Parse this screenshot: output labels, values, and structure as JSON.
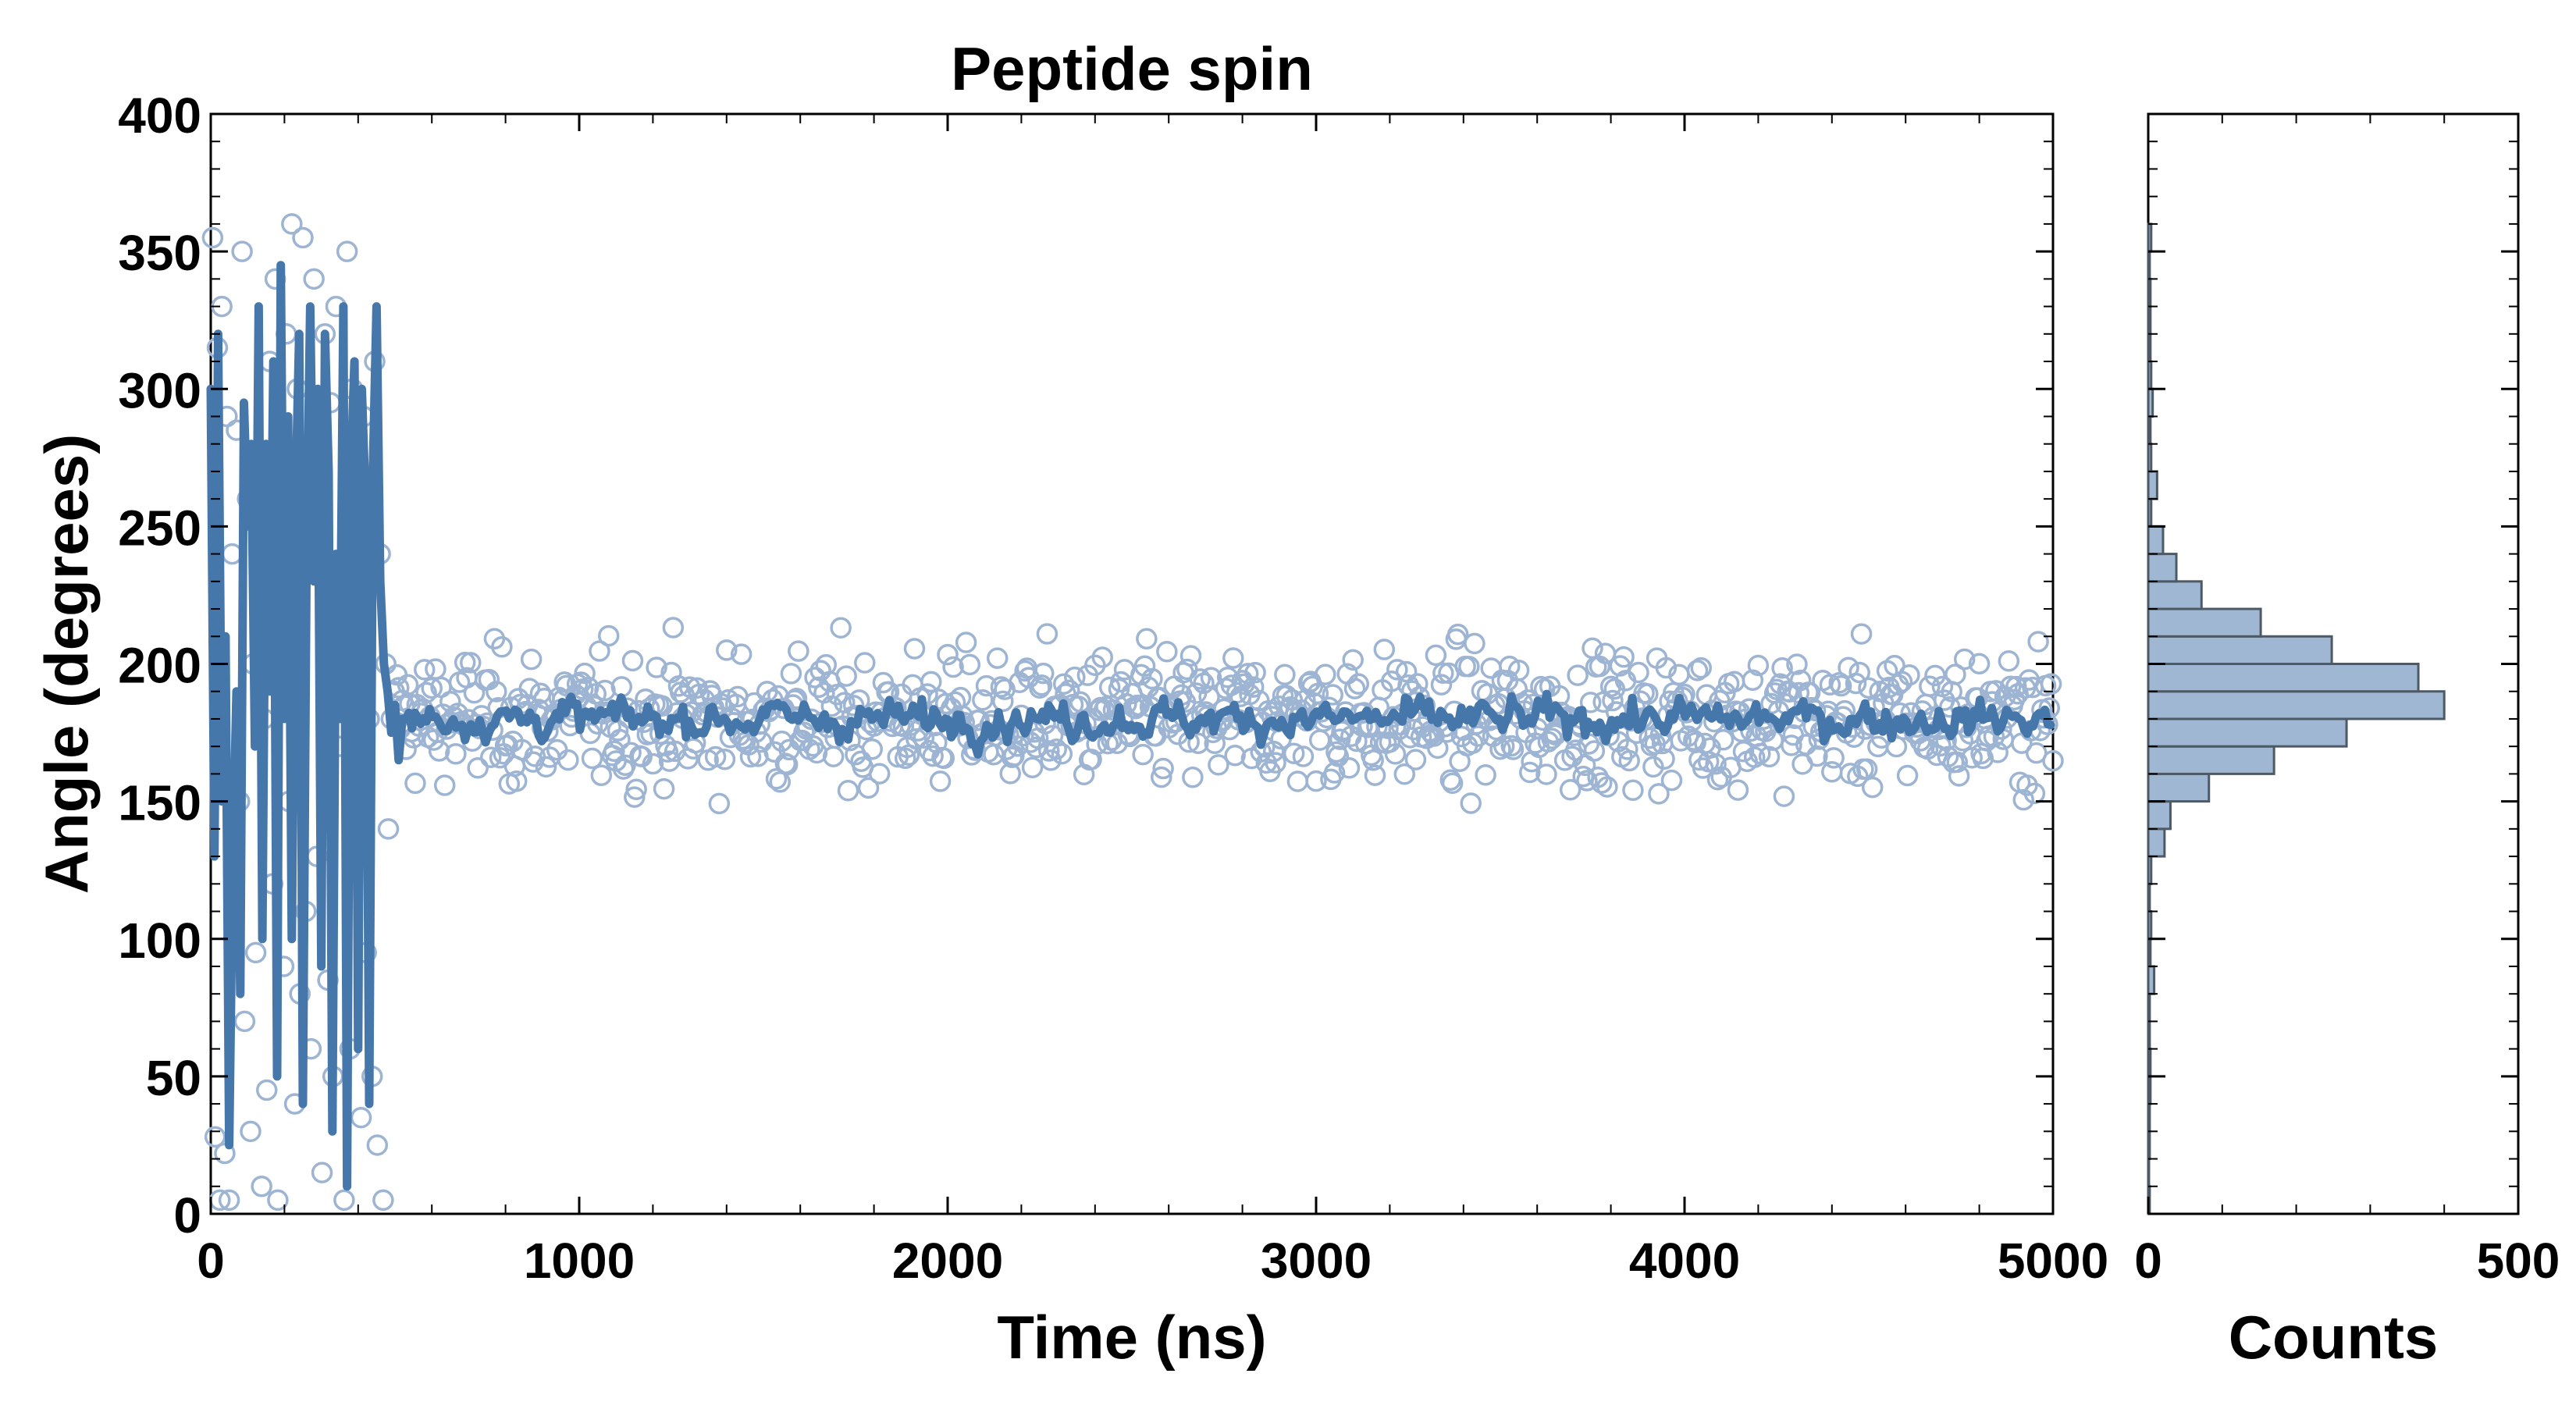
{
  "chart_data": [
    {
      "type": "scatter",
      "title": "Peptide spin",
      "xlabel": "Time (ns)",
      "ylabel": "Angle (degrees)",
      "xlim": [
        0,
        5000
      ],
      "ylim": [
        0,
        400
      ],
      "x_ticks": [
        "0",
        "1000",
        "2000",
        "3000",
        "4000",
        "5000"
      ],
      "y_ticks": [
        "0",
        "50",
        "100",
        "150",
        "200",
        "250",
        "300",
        "350",
        "400"
      ],
      "grid": false,
      "colors": {
        "marker": "#4a78ad",
        "marker_edge": "#9db4d3",
        "line": "#4677ab"
      },
      "series": [
        {
          "kind": "scatter",
          "time_step_ns": 5,
          "description_of_points": "approx. 1000 samples; 0–500 ns spread across 0–360°, 500–5000 ns clustered 150–230° around ~180°",
          "x": [
            5,
            12,
            18,
            25,
            30,
            38,
            44,
            50,
            58,
            63,
            70,
            78,
            85,
            92,
            100,
            108,
            115,
            122,
            130,
            138,
            145,
            152,
            160,
            168,
            175,
            182,
            190,
            198,
            205,
            212,
            220,
            228,
            235,
            242,
            250,
            258,
            265,
            272,
            280,
            288,
            295,
            302,
            310,
            318,
            325,
            332,
            340,
            348,
            355,
            362,
            370,
            378,
            385,
            392,
            400,
            408,
            415,
            422,
            430,
            438,
            445,
            452,
            460,
            468,
            475,
            482,
            490,
            498
          ],
          "y": [
            355,
            28,
            315,
            5,
            330,
            22,
            290,
            5,
            240,
            100,
            285,
            150,
            350,
            70,
            260,
            30,
            200,
            95,
            275,
            10,
            180,
            45,
            310,
            120,
            340,
            5,
            255,
            90,
            320,
            150,
            360,
            40,
            300,
            80,
            355,
            110,
            280,
            60,
            340,
            130,
            270,
            15,
            320,
            85,
            295,
            50,
            330,
            170,
            220,
            5,
            350,
            60,
            300,
            145,
            240,
            35,
            290,
            95,
            180,
            50,
            310,
            25,
            240,
            5,
            200,
            140,
            180,
            190
          ]
        },
        {
          "kind": "line",
          "x": [
            0,
            10,
            20,
            30,
            40,
            50,
            60,
            70,
            80,
            90,
            100,
            110,
            120,
            130,
            140,
            150,
            160,
            170,
            180,
            190,
            200,
            210,
            220,
            230,
            240,
            250,
            260,
            270,
            280,
            290,
            300,
            310,
            320,
            330,
            340,
            350,
            360,
            370,
            380,
            390,
            400,
            410,
            420,
            430,
            440,
            450,
            460,
            470,
            480,
            490,
            500,
            510,
            520
          ],
          "y": [
            300,
            130,
            320,
            150,
            210,
            25,
            130,
            190,
            80,
            295,
            250,
            280,
            170,
            330,
            100,
            280,
            190,
            310,
            50,
            345,
            180,
            290,
            100,
            260,
            320,
            40,
            240,
            330,
            230,
            300,
            90,
            320,
            270,
            30,
            240,
            180,
            330,
            10,
            270,
            310,
            60,
            300,
            260,
            40,
            270,
            330,
            230,
            200,
            190,
            175,
            185,
            165,
            180
          ]
        }
      ]
    },
    {
      "type": "bar",
      "orientation": "horizontal",
      "xlabel": "Counts",
      "x_ticks": [
        "0",
        "500"
      ],
      "xlim": [
        0,
        500
      ],
      "ylim": [
        0,
        400
      ],
      "bin_width": 10,
      "colors": {
        "fill": "#9fb7d2",
        "edge": "#4d5a66"
      },
      "bins": [
        {
          "y0": 0,
          "count": 2
        },
        {
          "y0": 10,
          "count": 1
        },
        {
          "y0": 20,
          "count": 2
        },
        {
          "y0": 30,
          "count": 2
        },
        {
          "y0": 40,
          "count": 3
        },
        {
          "y0": 50,
          "count": 3
        },
        {
          "y0": 60,
          "count": 2
        },
        {
          "y0": 70,
          "count": 2
        },
        {
          "y0": 80,
          "count": 8
        },
        {
          "y0": 90,
          "count": 3
        },
        {
          "y0": 100,
          "count": 4
        },
        {
          "y0": 110,
          "count": 2
        },
        {
          "y0": 120,
          "count": 4
        },
        {
          "y0": 130,
          "count": 22
        },
        {
          "y0": 140,
          "count": 30
        },
        {
          "y0": 150,
          "count": 82
        },
        {
          "y0": 160,
          "count": 170
        },
        {
          "y0": 170,
          "count": 268
        },
        {
          "y0": 180,
          "count": 400
        },
        {
          "y0": 190,
          "count": 365
        },
        {
          "y0": 200,
          "count": 248
        },
        {
          "y0": 210,
          "count": 152
        },
        {
          "y0": 220,
          "count": 72
        },
        {
          "y0": 230,
          "count": 38
        },
        {
          "y0": 240,
          "count": 20
        },
        {
          "y0": 250,
          "count": 4
        },
        {
          "y0": 260,
          "count": 12
        },
        {
          "y0": 270,
          "count": 4
        },
        {
          "y0": 280,
          "count": 3
        },
        {
          "y0": 290,
          "count": 6
        },
        {
          "y0": 300,
          "count": 4
        },
        {
          "y0": 310,
          "count": 3
        },
        {
          "y0": 320,
          "count": 3
        },
        {
          "y0": 330,
          "count": 3
        },
        {
          "y0": 340,
          "count": 2
        },
        {
          "y0": 350,
          "count": 4
        }
      ]
    }
  ]
}
